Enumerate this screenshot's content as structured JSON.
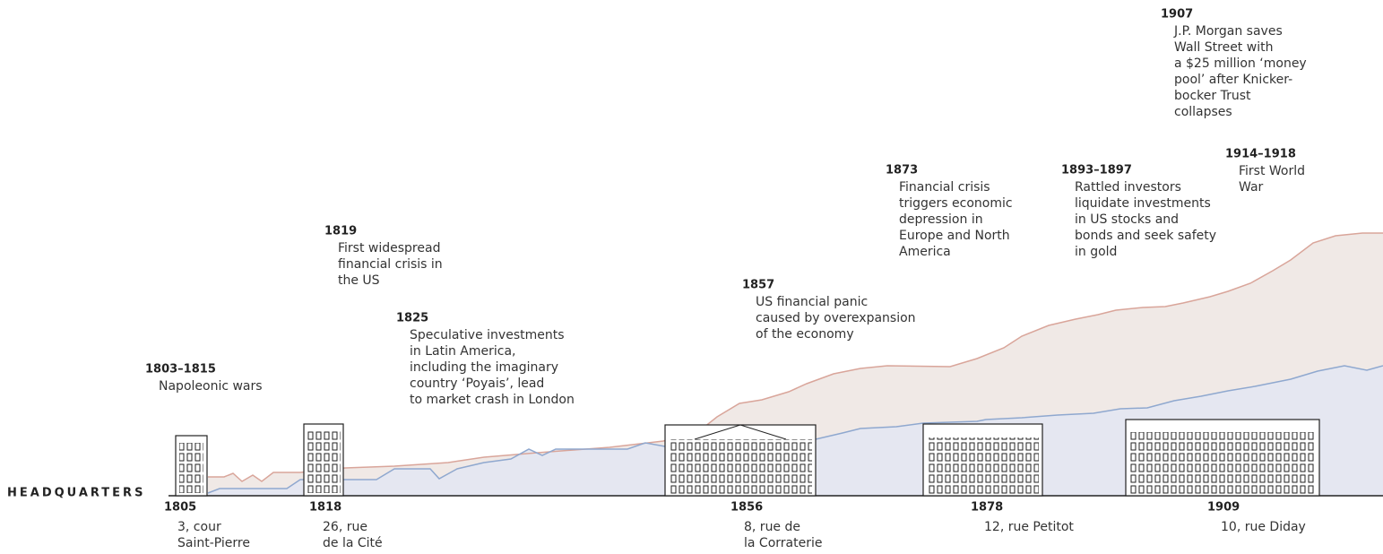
{
  "label": "HEADQUARTERS",
  "events": [
    {
      "year": "1803–1815",
      "lines": [
        "Napoleonic wars"
      ]
    },
    {
      "year": "1819",
      "lines": [
        "First widespread",
        "financial crisis in",
        "the US"
      ]
    },
    {
      "year": "1825",
      "lines": [
        "Speculative investments",
        "in Latin America,",
        "including the imaginary",
        "country ‘Poyais’, lead",
        "to market crash in London"
      ]
    },
    {
      "year": "1857",
      "lines": [
        "US financial panic",
        "caused by overexpansion",
        "of the economy"
      ]
    },
    {
      "year": "1873",
      "lines": [
        "Financial crisis",
        "triggers economic",
        "depression in",
        "Europe and North",
        "America"
      ]
    },
    {
      "year": "1893–1897",
      "lines": [
        "Rattled investors",
        "liquidate investments",
        "in US stocks and",
        "bonds and seek safety",
        "in gold"
      ]
    },
    {
      "year": "1907",
      "lines": [
        "J.P. Morgan saves",
        "Wall Street with",
        "a $25 million ‘money",
        "pool’ after Knicker-",
        "bocker Trust",
        "collapses"
      ]
    },
    {
      "year": "1914–1918",
      "lines": [
        "First World",
        "War"
      ]
    }
  ],
  "headquarters": [
    {
      "year": "1805",
      "lines": [
        "3, cour",
        "Saint-Pierre"
      ]
    },
    {
      "year": "1818",
      "lines": [
        "26, rue",
        "de la Cité"
      ]
    },
    {
      "year": "1856",
      "lines": [
        "8, rue de",
        "la Corraterie"
      ]
    },
    {
      "year": "1878",
      "lines": [
        "12, rue Petitot"
      ]
    },
    {
      "year": "1909",
      "lines": [
        "10, rue Diday"
      ]
    }
  ]
}
